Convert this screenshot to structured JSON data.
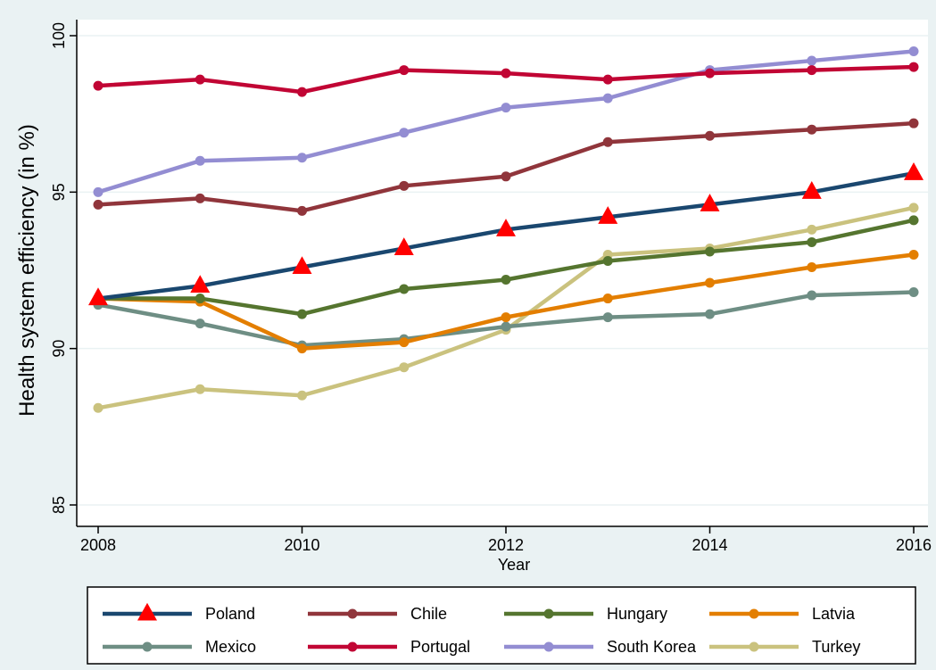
{
  "chart_data": {
    "type": "line",
    "title": "",
    "xlabel": "Year",
    "ylabel": "Health system efficiency (in %)",
    "xlim": [
      2008,
      2016
    ],
    "ylim": [
      85,
      100
    ],
    "x": [
      2008,
      2009,
      2010,
      2011,
      2012,
      2013,
      2014,
      2015,
      2016
    ],
    "x_ticks": [
      2008,
      2010,
      2012,
      2014,
      2016
    ],
    "y_ticks": [
      85,
      90,
      95,
      100
    ],
    "grid": true,
    "legend_position": "bottom",
    "series": [
      {
        "name": "Poland",
        "color": "#1a476f",
        "marker": "triangle",
        "marker_color": "#ff0000",
        "values": [
          91.6,
          92.0,
          92.6,
          93.2,
          93.8,
          94.2,
          94.6,
          95.0,
          95.6
        ]
      },
      {
        "name": "Chile",
        "color": "#90353b",
        "marker": "circle",
        "values": [
          94.6,
          94.8,
          94.4,
          95.2,
          95.5,
          96.6,
          96.8,
          97.0,
          97.2
        ]
      },
      {
        "name": "Hungary",
        "color": "#55752f",
        "marker": "circle",
        "values": [
          91.6,
          91.6,
          91.1,
          91.9,
          92.2,
          92.8,
          93.1,
          93.4,
          94.1
        ]
      },
      {
        "name": "Latvia",
        "color": "#e37e00",
        "marker": "circle",
        "values": [
          91.6,
          91.5,
          90.0,
          90.2,
          91.0,
          91.6,
          92.1,
          92.6,
          93.0
        ]
      },
      {
        "name": "Mexico",
        "color": "#6e8e84",
        "marker": "circle",
        "values": [
          91.4,
          90.8,
          90.1,
          90.3,
          90.7,
          91.0,
          91.1,
          91.7,
          91.8
        ]
      },
      {
        "name": "Portugal",
        "color": "#c10534",
        "marker": "circle",
        "values": [
          98.4,
          98.6,
          98.2,
          98.9,
          98.8,
          98.6,
          98.8,
          98.9,
          99.0
        ]
      },
      {
        "name": "South Korea",
        "color": "#938dd2",
        "marker": "circle",
        "values": [
          95.0,
          96.0,
          96.1,
          96.9,
          97.7,
          98.0,
          98.9,
          99.2,
          99.5
        ]
      },
      {
        "name": "Turkey",
        "color": "#cac27e",
        "marker": "circle",
        "values": [
          88.1,
          88.7,
          88.5,
          89.4,
          90.6,
          93.0,
          93.2,
          93.8,
          94.5
        ]
      }
    ]
  }
}
